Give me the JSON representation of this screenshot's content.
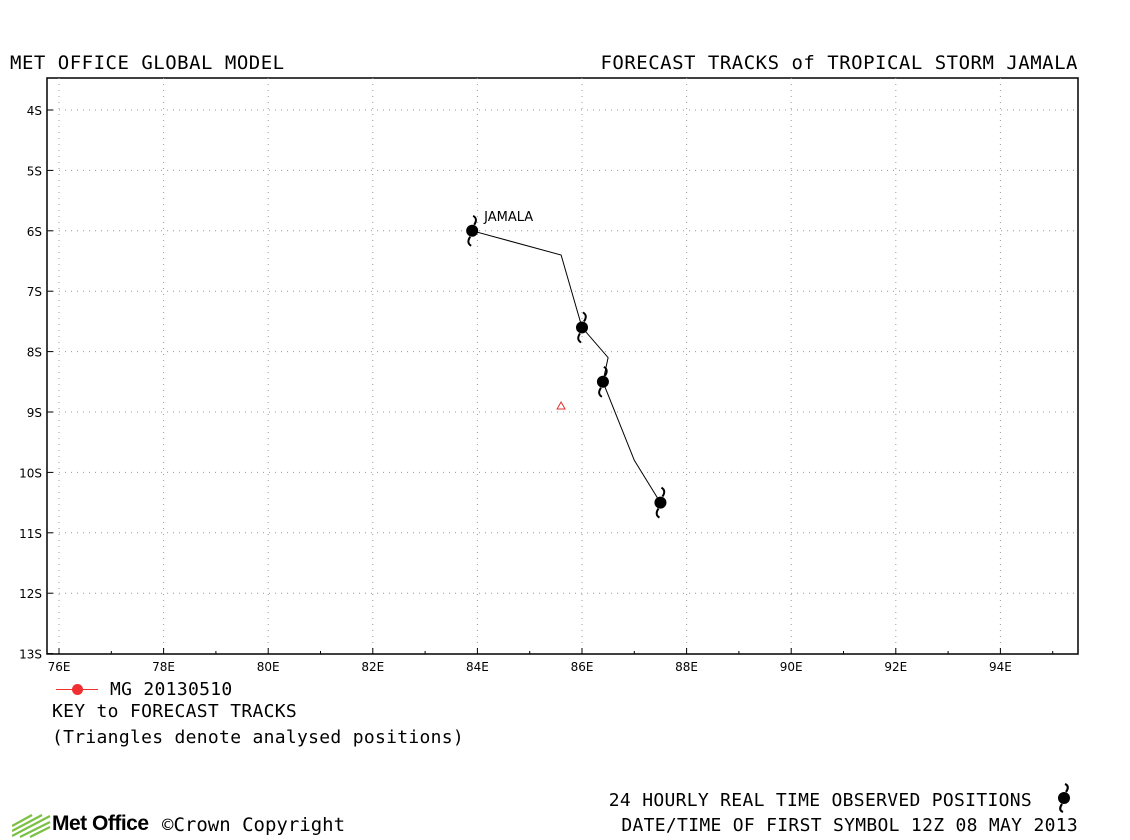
{
  "header": {
    "left_title": "MET OFFICE GLOBAL MODEL",
    "right_title": "FORECAST TRACKS of TROPICAL STORM JAMALA"
  },
  "chart_data": {
    "type": "map-track",
    "x_axis": {
      "range": [
        76,
        95.5
      ],
      "ticks": [
        76,
        78,
        80,
        82,
        84,
        86,
        88,
        90,
        92,
        94
      ],
      "tick_labels": [
        "76E",
        "78E",
        "80E",
        "82E",
        "84E",
        "86E",
        "88E",
        "90E",
        "92E",
        "94E"
      ]
    },
    "y_axis": {
      "range": [
        3.5,
        13
      ],
      "ticks": [
        4,
        5,
        6,
        7,
        8,
        9,
        10,
        11,
        12,
        13
      ],
      "tick_labels": [
        "4S",
        "5S",
        "6S",
        "7S",
        "8S",
        "9S",
        "10S",
        "11S",
        "12S",
        "13S"
      ]
    },
    "grid": true,
    "storm_label": "JAMALA",
    "observed_track": [
      {
        "lon": 83.9,
        "lat_s": 6.0
      },
      {
        "lon": 85.6,
        "lat_s": 6.4
      },
      {
        "lon": 86.0,
        "lat_s": 7.6
      },
      {
        "lon": 86.5,
        "lat_s": 8.1
      },
      {
        "lon": 86.4,
        "lat_s": 8.5
      },
      {
        "lon": 87.0,
        "lat_s": 9.8
      },
      {
        "lon": 87.5,
        "lat_s": 10.5
      }
    ],
    "observed_symbols": [
      {
        "lon": 83.9,
        "lat_s": 6.0
      },
      {
        "lon": 86.0,
        "lat_s": 7.6
      },
      {
        "lon": 86.4,
        "lat_s": 8.5
      },
      {
        "lon": 87.5,
        "lat_s": 10.5
      }
    ],
    "analysed_positions": [
      {
        "lon": 85.6,
        "lat_s": 8.9,
        "color": "#e03030"
      }
    ]
  },
  "legend": {
    "series_label": "MG 20130510",
    "series_color": "#f03030",
    "key_title": "KEY to FORECAST TRACKS",
    "key_note": "(Triangles denote analysed positions)"
  },
  "footer": {
    "brand": "Met Office",
    "copyright": "©Crown Copyright",
    "observed_note": "24 HOURLY REAL TIME OBSERVED POSITIONS",
    "first_symbol": "DATE/TIME OF FIRST SYMBOL 12Z 08 MAY 2013",
    "brand_color": "#7ac143"
  }
}
